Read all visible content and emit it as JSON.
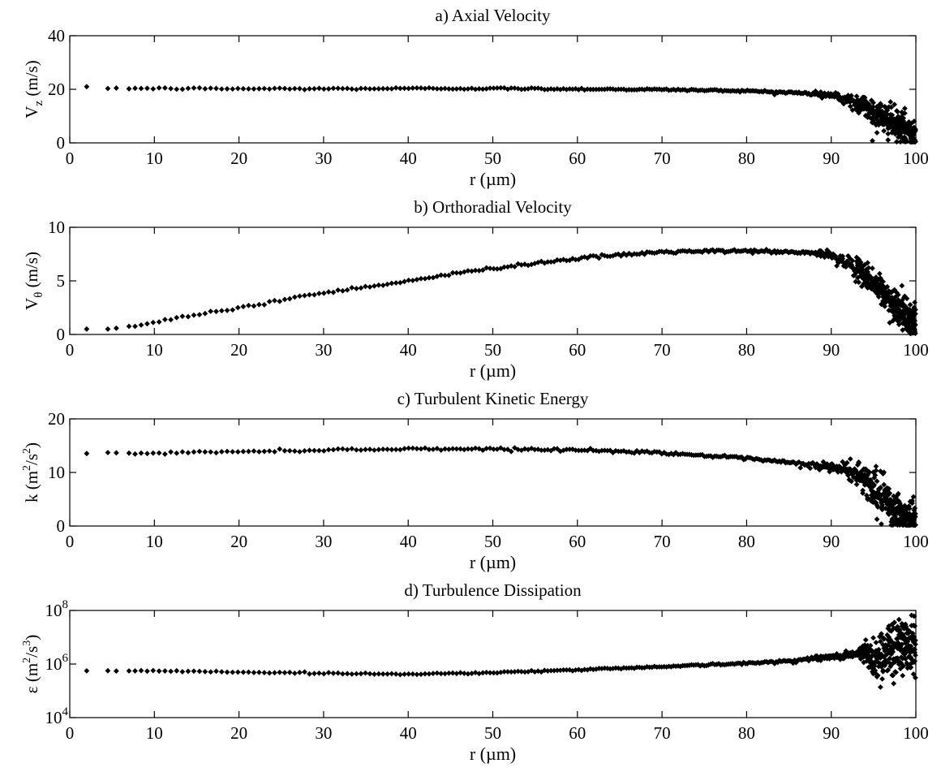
{
  "chart_data": [
    {
      "type": "scatter",
      "title": "a) Axial Velocity",
      "xlabel": "r (µm)",
      "ylabel": "V_z (m/s)",
      "ylabel_parts": {
        "main": "V",
        "sub": "z",
        "rest": " (m/s)"
      },
      "xlim": [
        0,
        100
      ],
      "ylim": [
        0,
        40
      ],
      "yscale": "linear",
      "xticks": [
        "0",
        "10",
        "20",
        "30",
        "40",
        "50",
        "60",
        "70",
        "80",
        "90",
        "100"
      ],
      "yticks": [
        {
          "v": 0,
          "label": "0"
        },
        {
          "v": 20,
          "label": "20"
        },
        {
          "v": 40,
          "label": "40"
        }
      ],
      "marker": "diamond",
      "profile": [
        [
          2,
          20.5
        ],
        [
          10,
          20.3
        ],
        [
          20,
          20.2
        ],
        [
          30,
          20.2
        ],
        [
          40,
          20.3
        ],
        [
          50,
          20.3
        ],
        [
          60,
          20.1
        ],
        [
          70,
          19.9
        ],
        [
          80,
          19.4
        ],
        [
          85,
          18.8
        ],
        [
          88,
          18.3
        ],
        [
          90,
          17.8
        ],
        [
          92,
          16.0
        ],
        [
          94,
          13.5
        ],
        [
          96,
          9.5
        ],
        [
          98,
          6.0
        ],
        [
          99.5,
          4.0
        ]
      ],
      "spread": [
        [
          0,
          0.35
        ],
        [
          80,
          0.35
        ],
        [
          90,
          0.8
        ],
        [
          93,
          2.0
        ],
        [
          96,
          3.0
        ],
        [
          100,
          3.5
        ]
      ]
    },
    {
      "type": "scatter",
      "title": "b) Orthoradial Velocity",
      "xlabel": "r (µm)",
      "ylabel": "V_θ (m/s)",
      "ylabel_parts": {
        "main": "V",
        "sub": "θ",
        "rest": " (m/s)"
      },
      "xlim": [
        0,
        100
      ],
      "ylim": [
        0,
        10
      ],
      "yscale": "linear",
      "xticks": [
        "0",
        "10",
        "20",
        "30",
        "40",
        "50",
        "60",
        "70",
        "80",
        "90",
        "100"
      ],
      "yticks": [
        {
          "v": 0,
          "label": "0"
        },
        {
          "v": 5,
          "label": "5"
        },
        {
          "v": 10,
          "label": "10"
        }
      ],
      "marker": "diamond",
      "profile": [
        [
          2,
          0.55
        ],
        [
          5,
          0.5
        ],
        [
          10,
          1.1
        ],
        [
          20,
          2.5
        ],
        [
          30,
          3.9
        ],
        [
          40,
          5.0
        ],
        [
          50,
          6.2
        ],
        [
          60,
          7.1
        ],
        [
          70,
          7.7
        ],
        [
          80,
          7.8
        ],
        [
          88,
          7.6
        ],
        [
          90,
          7.4
        ],
        [
          92,
          6.6
        ],
        [
          94,
          5.6
        ],
        [
          96,
          4.0
        ],
        [
          98,
          2.3
        ],
        [
          99.5,
          1.2
        ]
      ],
      "spread": [
        [
          0,
          0.12
        ],
        [
          88,
          0.15
        ],
        [
          92,
          0.4
        ],
        [
          95,
          0.7
        ],
        [
          100,
          0.9
        ]
      ]
    },
    {
      "type": "scatter",
      "title": "c) Turbulent Kinetic Energy",
      "xlabel": "r (µm)",
      "ylabel": "k (m^2/s^2)",
      "ylabel_parts": {
        "main": "k (m",
        "sup1": "2",
        "mid": "/s",
        "sup2": "2",
        "rest": ")"
      },
      "xlim": [
        0,
        100
      ],
      "ylim": [
        0,
        20
      ],
      "yscale": "linear",
      "xticks": [
        "0",
        "10",
        "20",
        "30",
        "40",
        "50",
        "60",
        "70",
        "80",
        "90",
        "100"
      ],
      "yticks": [
        {
          "v": 0,
          "label": "0"
        },
        {
          "v": 10,
          "label": "10"
        },
        {
          "v": 20,
          "label": "20"
        }
      ],
      "marker": "diamond",
      "profile": [
        [
          2,
          13.6
        ],
        [
          10,
          13.6
        ],
        [
          20,
          13.9
        ],
        [
          30,
          14.2
        ],
        [
          40,
          14.4
        ],
        [
          50,
          14.4
        ],
        [
          60,
          14.2
        ],
        [
          70,
          13.7
        ],
        [
          80,
          12.6
        ],
        [
          85,
          11.8
        ],
        [
          90,
          11.0
        ],
        [
          92,
          10.4
        ],
        [
          94,
          9.0
        ],
        [
          96,
          5.0
        ],
        [
          98,
          2.2
        ],
        [
          99.5,
          1.0
        ]
      ],
      "spread": [
        [
          0,
          0.2
        ],
        [
          80,
          0.25
        ],
        [
          90,
          0.6
        ],
        [
          93,
          1.2
        ],
        [
          96,
          2.2
        ],
        [
          100,
          2.0
        ]
      ]
    },
    {
      "type": "scatter",
      "title": "d) Turbulence Dissipation",
      "xlabel": "r (µm)",
      "ylabel": "ε (m^2/s^3)",
      "ylabel_parts": {
        "main": "ε (m",
        "sup1": "2",
        "mid": "/s",
        "sup2": "3",
        "rest": ")"
      },
      "xlim": [
        0,
        100
      ],
      "ylim": [
        10000,
        100000000
      ],
      "yscale": "log",
      "xticks": [
        "0",
        "10",
        "20",
        "30",
        "40",
        "50",
        "60",
        "70",
        "80",
        "90",
        "100"
      ],
      "yticks": [
        {
          "v": 10000,
          "base": "10",
          "exp": "4"
        },
        {
          "v": 1000000,
          "base": "10",
          "exp": "6"
        },
        {
          "v": 100000000,
          "base": "10",
          "exp": "8"
        }
      ],
      "marker": "diamond",
      "profile": [
        [
          2,
          560000
        ],
        [
          10,
          560000
        ],
        [
          20,
          500000
        ],
        [
          30,
          450000
        ],
        [
          40,
          420000
        ],
        [
          50,
          480000
        ],
        [
          60,
          600000
        ],
        [
          70,
          800000
        ],
        [
          80,
          1050000
        ],
        [
          85,
          1300000
        ],
        [
          90,
          1800000
        ],
        [
          92,
          2200000
        ],
        [
          94,
          2600000
        ],
        [
          95,
          1400000
        ],
        [
          97,
          3000000
        ],
        [
          98,
          4500000
        ],
        [
          99.5,
          7000000
        ]
      ],
      "spread": [
        [
          0,
          0.015
        ],
        [
          80,
          0.03
        ],
        [
          93,
          0.08
        ],
        [
          95,
          0.4
        ],
        [
          97,
          0.6
        ],
        [
          100,
          0.6
        ]
      ]
    }
  ]
}
